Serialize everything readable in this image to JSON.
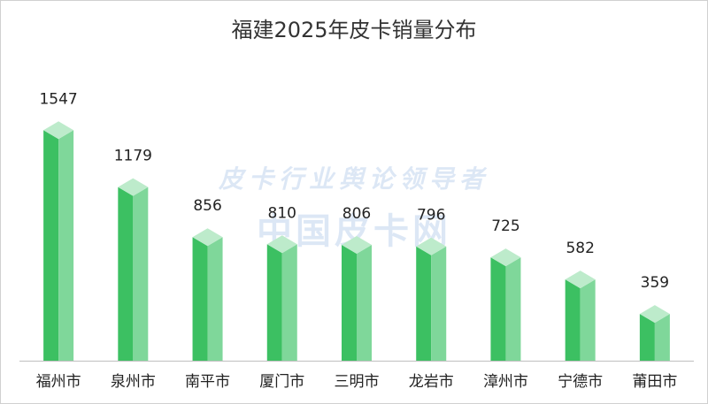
{
  "chart_data": {
    "type": "bar",
    "title": "福建2025年皮卡销量分布",
    "categories": [
      "福州市",
      "泉州市",
      "南平市",
      "厦门市",
      "三明市",
      "龙岩市",
      "漳州市",
      "宁德市",
      "莆田市"
    ],
    "values": [
      1547,
      1179,
      856,
      810,
      806,
      796,
      725,
      582,
      359
    ],
    "ylim": [
      0,
      1600
    ],
    "grid": false,
    "legend": "none",
    "colors": {
      "front": "#3cc062",
      "side": "#7fd79a",
      "top": "#bdebcb",
      "axis": "#bfbfbf"
    }
  },
  "watermark": {
    "line1": "皮卡行业舆论领导者",
    "line2": "中国皮卡网"
  }
}
